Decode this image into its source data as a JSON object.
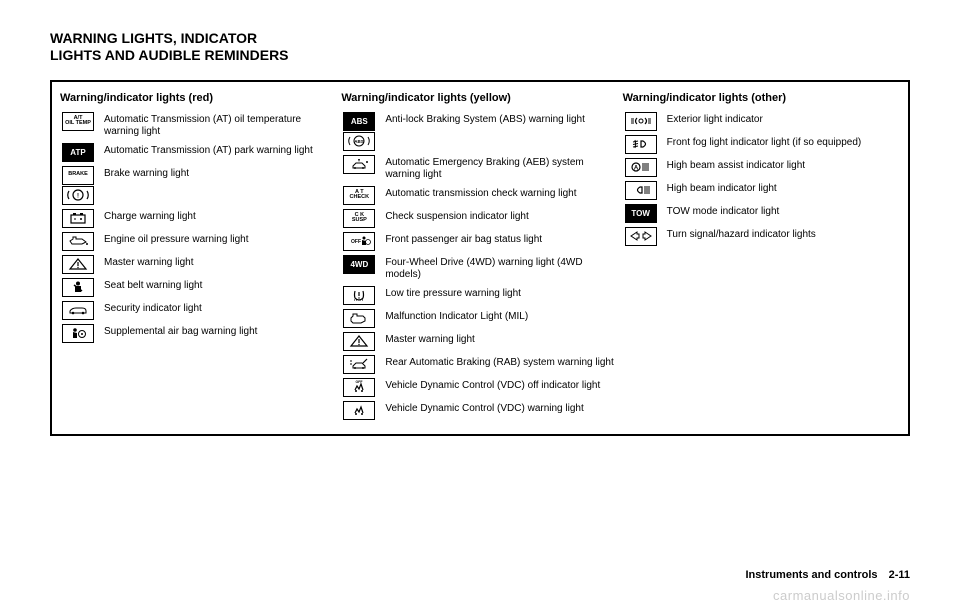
{
  "heading_line1": "WARNING LIGHTS, INDICATOR",
  "heading_line2": "LIGHTS AND AUDIBLE REMINDERS",
  "columns": {
    "red": {
      "header": "Warning/indicator lights (red)",
      "items": [
        {
          "icon_text": "A/T\nOIL TEMP",
          "icon_style": "tiny",
          "label": "Automatic Transmission (AT) oil temperature warning light"
        },
        {
          "icon_text": "ATP",
          "icon_style": "filled",
          "label": "Automatic Transmission (AT) park warning light"
        },
        {
          "icon_text": "BRAKE",
          "icon_style": "tiny-stack",
          "icon_svg": "brake-circle",
          "label": "Brake warning light"
        },
        {
          "icon_svg": "battery",
          "label": "Charge warning light"
        },
        {
          "icon_svg": "oilcan",
          "label": "Engine oil pressure warning light"
        },
        {
          "icon_svg": "triangle-excl",
          "label": "Master warning light"
        },
        {
          "icon_svg": "seatbelt",
          "label": "Seat belt warning light"
        },
        {
          "icon_svg": "car-key",
          "label": "Security indicator light"
        },
        {
          "icon_svg": "airbag",
          "label": "Supplemental air bag warning light"
        }
      ]
    },
    "yellow": {
      "header": "Warning/indicator lights (yellow)",
      "items": [
        {
          "icon_text": "ABS",
          "icon_style": "filled-stack",
          "icon_svg": "abs-alt",
          "label": "Anti-lock Braking System (ABS) warning light"
        },
        {
          "icon_svg": "aeb",
          "label": "Automatic Emergency Braking (AEB) system warning light"
        },
        {
          "icon_text": "A T\nCHECK",
          "icon_style": "tiny",
          "label": "Automatic transmission check warning light"
        },
        {
          "icon_text": "C K\nSUSP",
          "icon_style": "tiny",
          "label": "Check suspension indicator light"
        },
        {
          "icon_svg": "passenger-airbag",
          "label": "Front passenger air bag status light"
        },
        {
          "icon_text": "4WD",
          "icon_style": "filled",
          "label": "Four-Wheel Drive (4WD) warning light (4WD models)"
        },
        {
          "icon_svg": "tire-excl",
          "label": "Low tire pressure warning light"
        },
        {
          "icon_svg": "engine",
          "label": "Malfunction Indicator Light (MIL)"
        },
        {
          "icon_svg": "triangle-excl",
          "label": "Master warning light"
        },
        {
          "icon_svg": "rab",
          "label": "Rear Automatic Braking (RAB) system warning light"
        },
        {
          "icon_svg": "vdc-off",
          "label": "Vehicle Dynamic Control (VDC) off indicator light"
        },
        {
          "icon_svg": "vdc",
          "label": "Vehicle Dynamic Control (VDC) warning light"
        }
      ]
    },
    "other": {
      "header": "Warning/indicator lights (other)",
      "items": [
        {
          "icon_svg": "ext-light",
          "label": "Exterior light indicator"
        },
        {
          "icon_svg": "fog",
          "label": "Front fog light indicator light (if so equipped)"
        },
        {
          "icon_svg": "highbeam-a",
          "label": "High beam assist indicator light"
        },
        {
          "icon_svg": "highbeam",
          "label": "High beam indicator light"
        },
        {
          "icon_text": "TOW",
          "icon_style": "filled",
          "label": "TOW mode indicator light"
        },
        {
          "icon_svg": "turn-signals",
          "label": "Turn signal/hazard indicator lights"
        }
      ]
    }
  },
  "footer": {
    "section": "Instruments and controls",
    "page": "2-11"
  },
  "watermark": "carmanualsonline.info",
  "colors": {
    "text": "#000000",
    "border": "#000000",
    "watermark": "#cccccc",
    "background": "#ffffff"
  }
}
